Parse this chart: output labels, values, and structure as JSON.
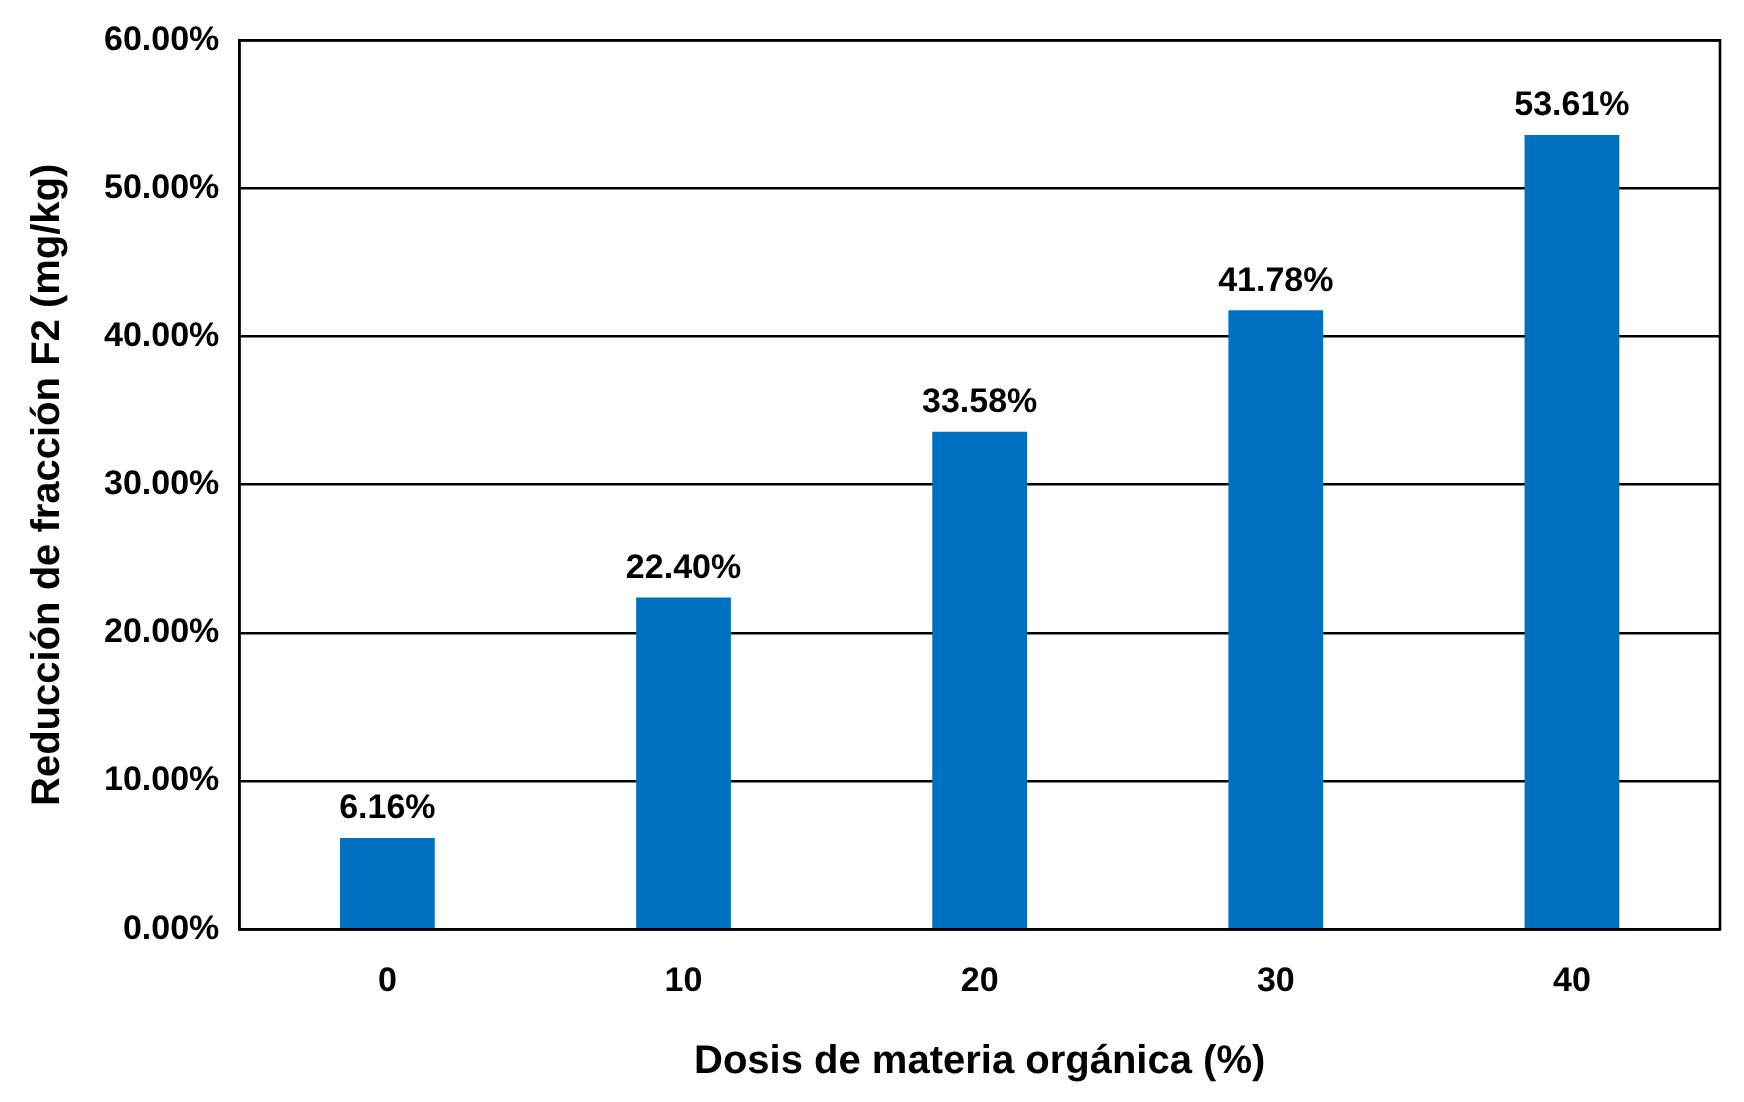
{
  "chart_data": {
    "type": "bar",
    "xlabel": "Dosis de materia orgánica (%)",
    "ylabel": "Reducción de fracción F2 (mg/kg)",
    "categories": [
      "0",
      "10",
      "20",
      "30",
      "40"
    ],
    "values": [
      6.16,
      22.4,
      33.58,
      41.78,
      53.61
    ],
    "value_labels": [
      "6.16%",
      "22.40%",
      "33.58%",
      "41.78%",
      "53.61%"
    ],
    "color": "#0070c0",
    "ylim": [
      0,
      60
    ],
    "yticks": [
      {
        "value": 0,
        "label": "0.00%"
      },
      {
        "value": 10,
        "label": "10.00%"
      },
      {
        "value": 20,
        "label": "20.00%"
      },
      {
        "value": 30,
        "label": "30.00%"
      },
      {
        "value": 40,
        "label": "40.00%"
      },
      {
        "value": 50,
        "label": "50.00%"
      },
      {
        "value": 60,
        "label": "60.00%"
      }
    ],
    "grid": "y",
    "legend": false
  }
}
